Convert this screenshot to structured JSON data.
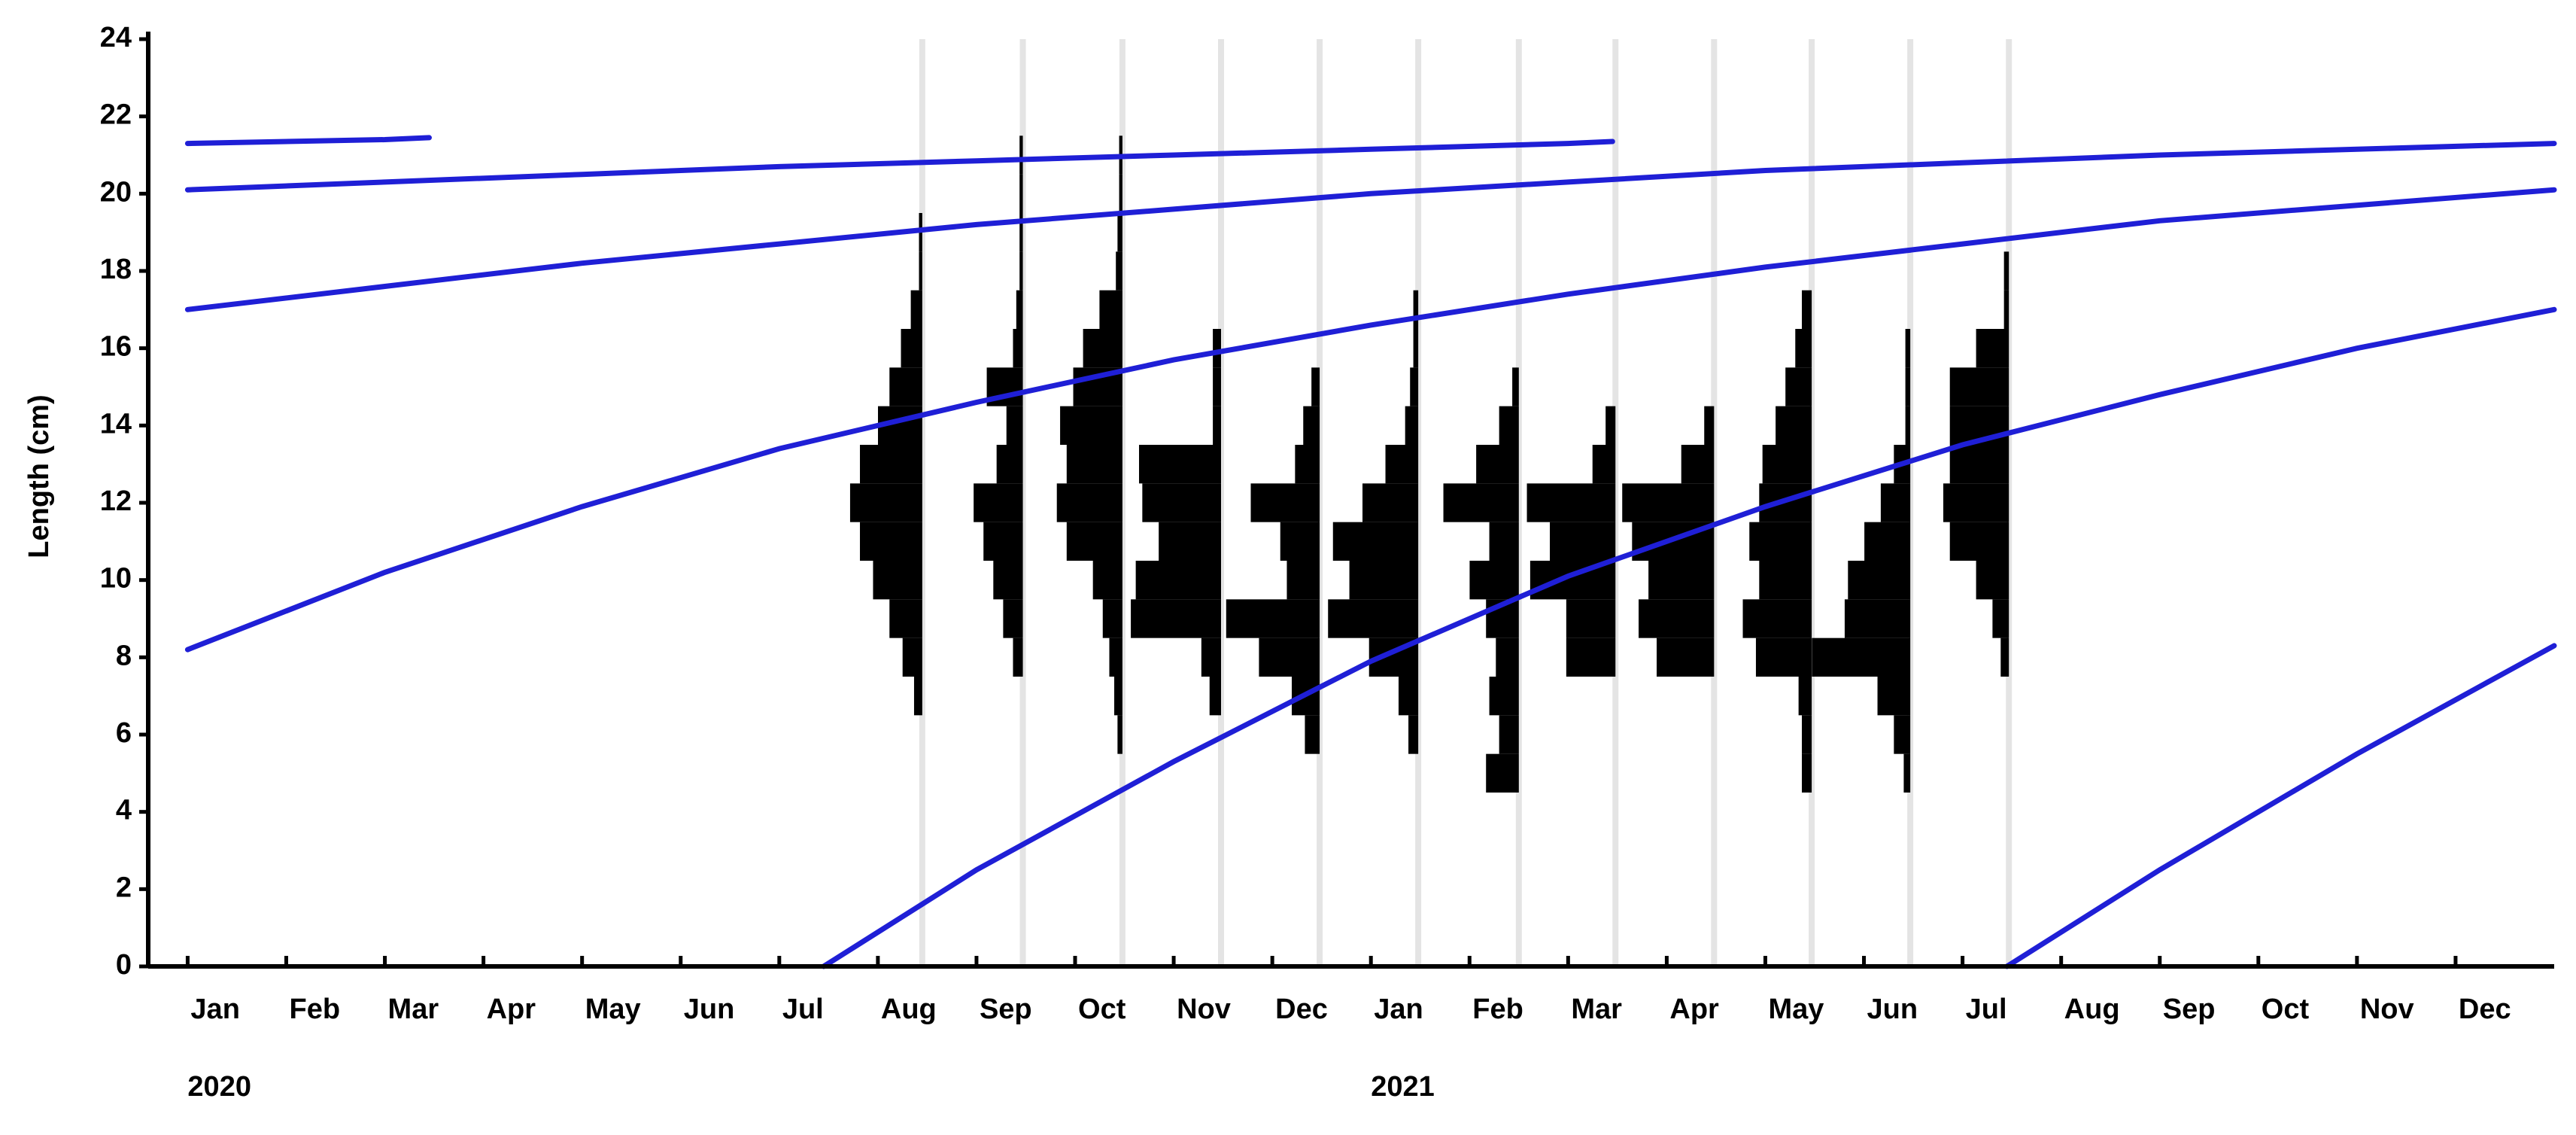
{
  "chart_data": {
    "type": "length-frequency",
    "y_label": "Length (cm)",
    "xlim": [
      -0.4,
      24
    ],
    "xticks": [
      {
        "value": 0,
        "label": "Jan"
      },
      {
        "value": 1,
        "label": "Feb"
      },
      {
        "value": 2,
        "label": "Mar"
      },
      {
        "value": 3,
        "label": "Apr"
      },
      {
        "value": 4,
        "label": "May"
      },
      {
        "value": 5,
        "label": "Jun"
      },
      {
        "value": 6,
        "label": "Jul"
      },
      {
        "value": 7,
        "label": "Aug"
      },
      {
        "value": 8,
        "label": "Sep"
      },
      {
        "value": 9,
        "label": "Oct"
      },
      {
        "value": 10,
        "label": "Nov"
      },
      {
        "value": 11,
        "label": "Dec"
      },
      {
        "value": 12,
        "label": "Jan"
      },
      {
        "value": 13,
        "label": "Feb"
      },
      {
        "value": 14,
        "label": "Mar"
      },
      {
        "value": 15,
        "label": "Apr"
      },
      {
        "value": 16,
        "label": "May"
      },
      {
        "value": 17,
        "label": "Jun"
      },
      {
        "value": 18,
        "label": "Jul"
      },
      {
        "value": 19,
        "label": "Aug"
      },
      {
        "value": 20,
        "label": "Sep"
      },
      {
        "value": 21,
        "label": "Oct"
      },
      {
        "value": 22,
        "label": "Nov"
      },
      {
        "value": 23,
        "label": "Dec"
      }
    ],
    "year_labels": [
      {
        "value": 0,
        "label": "2020"
      },
      {
        "value": 12,
        "label": "2021"
      }
    ],
    "ylim": [
      0,
      24
    ],
    "yticks": [
      0,
      2,
      4,
      6,
      8,
      10,
      12,
      14,
      16,
      18,
      20,
      22,
      24
    ],
    "grid": true,
    "bar_color": "#000000",
    "curve_color": "#1f1fd6",
    "bins": [
      4.5,
      5.5,
      6.5,
      7.5,
      8.5,
      9.5,
      10.5,
      11.5,
      12.5,
      13.5,
      14.5,
      15.5,
      16.5,
      17.5,
      18.5,
      19.5,
      20.5,
      21.5
    ],
    "samples": [
      {
        "x": 7.45,
        "values": [
          0,
          0,
          5,
          12,
          20,
          30,
          38,
          44,
          38,
          27,
          20,
          13,
          7,
          2,
          2,
          0,
          0
        ]
      },
      {
        "x": 8.47,
        "values": [
          0,
          0,
          0,
          6,
          12,
          18,
          24,
          30,
          16,
          10,
          22,
          6,
          4,
          2,
          2,
          2,
          2
        ]
      },
      {
        "x": 9.48,
        "values": [
          0,
          3,
          5,
          8,
          12,
          18,
          34,
          40,
          34,
          38,
          30,
          24,
          14,
          4,
          3,
          2,
          2
        ]
      },
      {
        "x": 10.48,
        "values": [
          0,
          0,
          7,
          12,
          55,
          52,
          38,
          48,
          50,
          5,
          5,
          5,
          0,
          0,
          0,
          0,
          0
        ]
      },
      {
        "x": 11.48,
        "values": [
          0,
          9,
          17,
          37,
          57,
          20,
          24,
          42,
          15,
          10,
          5,
          0,
          0,
          0,
          0,
          0,
          0
        ]
      },
      {
        "x": 12.48,
        "values": [
          0,
          6,
          12,
          30,
          55,
          42,
          52,
          34,
          20,
          8,
          5,
          3,
          3,
          0,
          0,
          0,
          0
        ]
      },
      {
        "x": 13.5,
        "values": [
          20,
          12,
          18,
          14,
          20,
          30,
          18,
          46,
          26,
          12,
          4,
          0,
          0,
          0,
          0,
          0,
          0
        ]
      },
      {
        "x": 14.48,
        "values": [
          0,
          0,
          0,
          30,
          30,
          52,
          40,
          54,
          14,
          6,
          0,
          0,
          0,
          0,
          0,
          0,
          0
        ]
      },
      {
        "x": 15.48,
        "values": [
          0,
          0,
          0,
          35,
          46,
          40,
          50,
          56,
          20,
          6,
          0,
          0,
          0,
          0,
          0,
          0,
          0
        ]
      },
      {
        "x": 16.47,
        "values": [
          6,
          6,
          8,
          34,
          42,
          32,
          38,
          32,
          30,
          22,
          16,
          10,
          6,
          0,
          0,
          0,
          0
        ]
      },
      {
        "x": 17.47,
        "values": [
          4,
          10,
          20,
          60,
          40,
          38,
          28,
          18,
          10,
          3,
          3,
          3,
          0,
          0,
          0,
          0,
          0
        ]
      },
      {
        "x": 18.47,
        "values": [
          0,
          0,
          0,
          5,
          10,
          20,
          36,
          40,
          36,
          36,
          36,
          20,
          3,
          3,
          0,
          0,
          0
        ]
      }
    ],
    "curves": [
      {
        "x": [
          6.45,
          8,
          10,
          12,
          14,
          16,
          18,
          20,
          22,
          24
        ],
        "values": [
          0,
          2.5,
          5.3,
          7.9,
          10.1,
          11.9,
          13.5,
          14.8,
          16.0,
          17.0
        ]
      },
      {
        "x": [
          0,
          2,
          4,
          6,
          8,
          10,
          12,
          14,
          16,
          18,
          20,
          22,
          24
        ],
        "values": [
          8.2,
          10.2,
          11.9,
          13.4,
          14.6,
          15.7,
          16.6,
          17.4,
          18.1,
          18.7,
          19.3,
          19.7,
          20.1
        ]
      },
      {
        "x": [
          0,
          2,
          4,
          6,
          8,
          10,
          12,
          14,
          16,
          18,
          20,
          22,
          24
        ],
        "values": [
          17.0,
          17.6,
          18.2,
          18.7,
          19.2,
          19.6,
          20.0,
          20.3,
          20.6,
          20.8,
          21.0,
          21.15,
          21.3
        ]
      },
      {
        "x": [
          0,
          2,
          4,
          6,
          8,
          10,
          12,
          14,
          14.45
        ],
        "values": [
          20.1,
          20.3,
          20.5,
          20.7,
          20.85,
          21.0,
          21.15,
          21.3,
          21.35
        ]
      },
      {
        "x": [
          0,
          2,
          2.45
        ],
        "values": [
          21.3,
          21.4,
          21.45
        ]
      },
      {
        "x": [
          18.45,
          20,
          22,
          24
        ],
        "values": [
          0,
          2.5,
          5.5,
          8.3
        ]
      }
    ]
  }
}
